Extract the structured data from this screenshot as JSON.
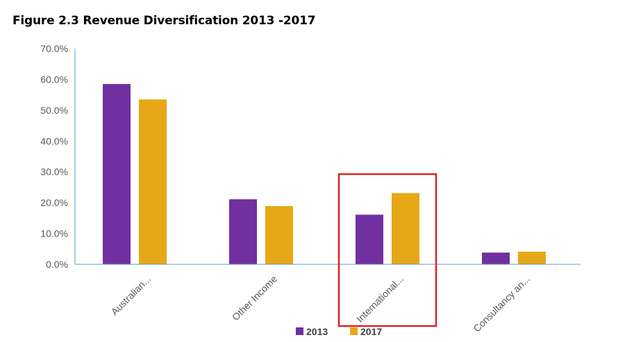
{
  "figure_title": "Figure 2.3 Revenue Diversification 2013 -2017",
  "colors": {
    "series_2013": "#7030a0",
    "series_2017": "#e6a817",
    "axis": "#5b9bd5",
    "tick_text": "#595959",
    "highlight_box": "#e02020"
  },
  "chart_data": {
    "type": "bar",
    "title": "",
    "xlabel": "",
    "ylabel": "",
    "ylim": [
      0,
      70
    ],
    "y_ticks": [
      "0.0%",
      "10.0%",
      "20.0%",
      "30.0%",
      "40.0%",
      "50.0%",
      "60.0%",
      "70.0%"
    ],
    "categories": [
      "Australian...",
      "Other Income",
      "International...",
      "Consultancy an..."
    ],
    "series": [
      {
        "name": "2013",
        "values": [
          58.5,
          21.1,
          16.1,
          3.8
        ]
      },
      {
        "name": "2017",
        "values": [
          53.5,
          18.9,
          23.1,
          4.1
        ]
      }
    ],
    "grid": false,
    "legend_position": "bottom",
    "highlighted_category": "International..."
  }
}
